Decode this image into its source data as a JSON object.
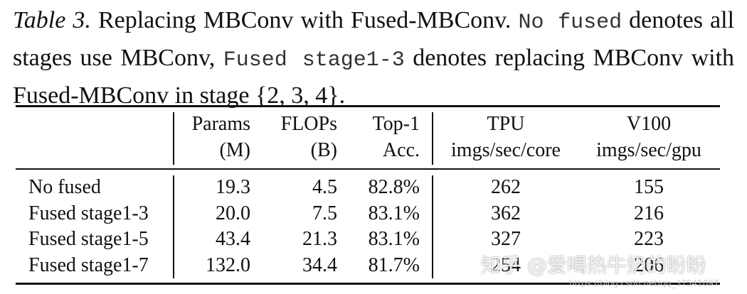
{
  "caption": {
    "label": "Table 3.",
    "title": "Replacing MBConv with Fused-MBConv.",
    "parts": [
      {
        "text": "No fused",
        "mono": true
      },
      {
        "text": "denotes all stages use MBConv,",
        "mono": false
      },
      {
        "text": "Fused stage1-3",
        "mono": true
      },
      {
        "text": "denotes replacing MBConv with Fused-MBConv in stage {2, 3, 4}.",
        "mono": false
      }
    ]
  },
  "table": {
    "header": [
      [
        "",
        ""
      ],
      [
        "Params",
        "(M)"
      ],
      [
        "FLOPs",
        "(B)"
      ],
      [
        "Top-1",
        "Acc."
      ],
      [
        "TPU",
        "imgs/sec/core"
      ],
      [
        "V100",
        "imgs/sec/gpu"
      ]
    ],
    "rows": [
      [
        "No fused",
        "19.3",
        "4.5",
        "82.8%",
        "262",
        "155"
      ],
      [
        "Fused stage1-3",
        "20.0",
        "7.5",
        "83.1%",
        "362",
        "216"
      ],
      [
        "Fused stage1-5",
        "43.4",
        "21.3",
        "83.1%",
        "327",
        "223"
      ],
      [
        "Fused stage1-7",
        "132.0",
        "34.4",
        "81.7%",
        "254",
        "206"
      ]
    ]
  },
  "watermark": {
    "text": "知乎 @爱喝热牛奶的盼盼",
    "url": "https://blog.csdn.net/qq_37541097"
  }
}
